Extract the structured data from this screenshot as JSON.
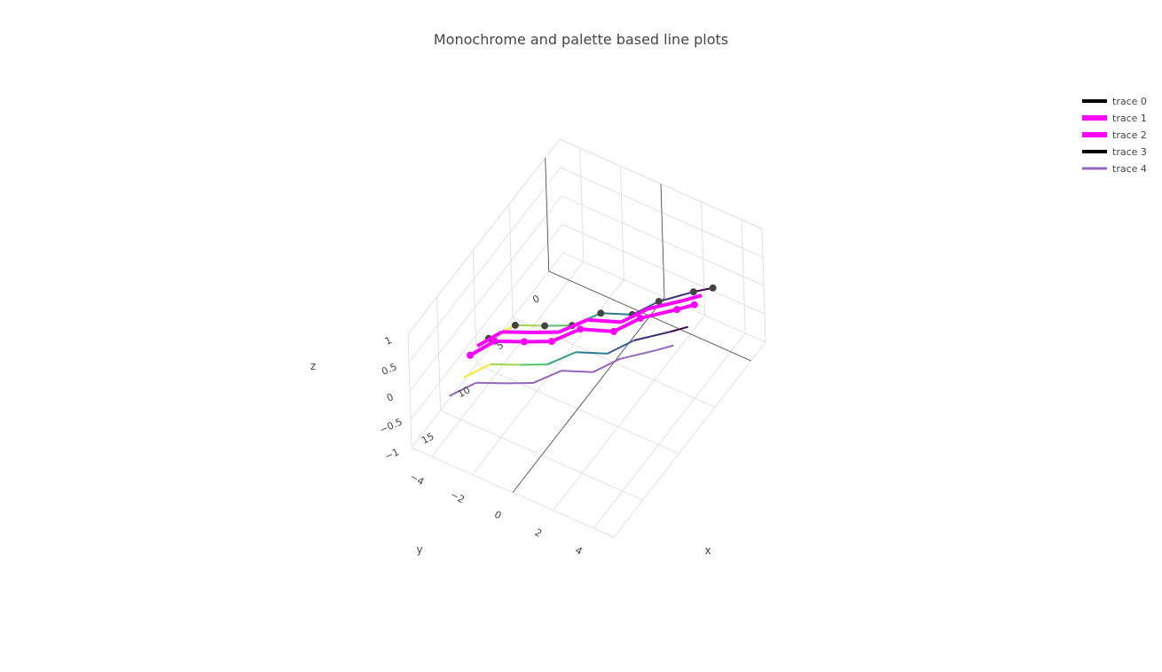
{
  "chart_data": {
    "type": "line",
    "title": "Monochrome and palette based line plots",
    "xlabel": "x",
    "ylabel": "y",
    "zlabel": "z",
    "xlim": [
      -5,
      5
    ],
    "ylim": [
      -2,
      19
    ],
    "zlim": [
      -1,
      1
    ],
    "x_ticks": [
      "−4",
      "−2",
      "0",
      "2",
      "4"
    ],
    "y_ticks": [
      "0",
      "5",
      "10",
      "15"
    ],
    "z_ticks": [
      "1",
      "0.5",
      "0",
      "−0.5",
      "−1"
    ],
    "x_tick_values": [
      -4,
      -2,
      0,
      2,
      4
    ],
    "y_tick_values": [
      0,
      5,
      10,
      15
    ],
    "z_tick_values": [
      1,
      0.5,
      0,
      -0.5,
      -1
    ],
    "grid": true,
    "legend_position": "top-right",
    "colorscale": [
      "#440154",
      "#3b528b",
      "#21918c",
      "#5ec962",
      "#fde725"
    ],
    "series": [
      {
        "name": "trace 0",
        "legend_color": "#000000",
        "mode": "lines+markers",
        "color_mode": "colorscale",
        "marker_color": "#444444",
        "x": [
          3.2,
          2.6,
          1.6,
          1.0,
          -0.2,
          -0.9,
          -1.9,
          -3.0,
          -3.6
        ],
        "y": [
          0,
          1,
          3,
          5,
          6,
          8,
          9,
          10,
          12
        ],
        "z": [
          0,
          0,
          0,
          0,
          0,
          0,
          0,
          0,
          0
        ]
      },
      {
        "name": "trace 1",
        "legend_color": "#ff00ff",
        "mode": "lines",
        "color_mode": "solid",
        "color": "#ff00ff",
        "x": [
          3.0,
          2.5,
          1.4,
          0.8,
          -0.5,
          -1.2,
          -2.2,
          -3.3,
          -3.8
        ],
        "y": [
          1,
          2,
          4,
          6,
          7,
          9,
          10,
          11,
          13
        ],
        "z": [
          0,
          0,
          0,
          0,
          0,
          0,
          0,
          0,
          0
        ]
      },
      {
        "name": "trace 2",
        "legend_color": "#ff00ff",
        "mode": "lines+markers",
        "color_mode": "solid",
        "color": "#ff00ff",
        "x": [
          3.0,
          2.5,
          1.4,
          0.8,
          -0.5,
          -1.2,
          -2.2,
          -3.3,
          -3.8
        ],
        "y": [
          2,
          3,
          5,
          7,
          8,
          10,
          11,
          12,
          14
        ],
        "z": [
          0,
          0,
          0,
          0,
          0,
          0,
          0,
          0,
          0
        ]
      },
      {
        "name": "trace 3",
        "legend_color": "#000000",
        "mode": "lines",
        "color_mode": "colorscale",
        "x": [
          3.4,
          2.9,
          1.8,
          1.2,
          0.0,
          -0.7,
          -1.7,
          -2.8,
          -3.4
        ],
        "y": [
          4,
          5,
          7,
          9,
          10,
          12,
          13,
          14,
          16
        ],
        "z": [
          0,
          0,
          0,
          0,
          0,
          0,
          0,
          0,
          0
        ]
      },
      {
        "name": "trace 4",
        "legend_color": "#9467bd",
        "mode": "lines",
        "color_mode": "solid",
        "color": "#9467bd",
        "x": [
          3.4,
          2.9,
          1.8,
          1.2,
          0.0,
          -0.7,
          -1.7,
          -2.8,
          -3.4
        ],
        "y": [
          6,
          7,
          9,
          11,
          12,
          14,
          15,
          16,
          18
        ],
        "z": [
          0,
          0,
          0,
          0,
          0,
          0,
          0,
          0,
          0
        ]
      }
    ]
  }
}
